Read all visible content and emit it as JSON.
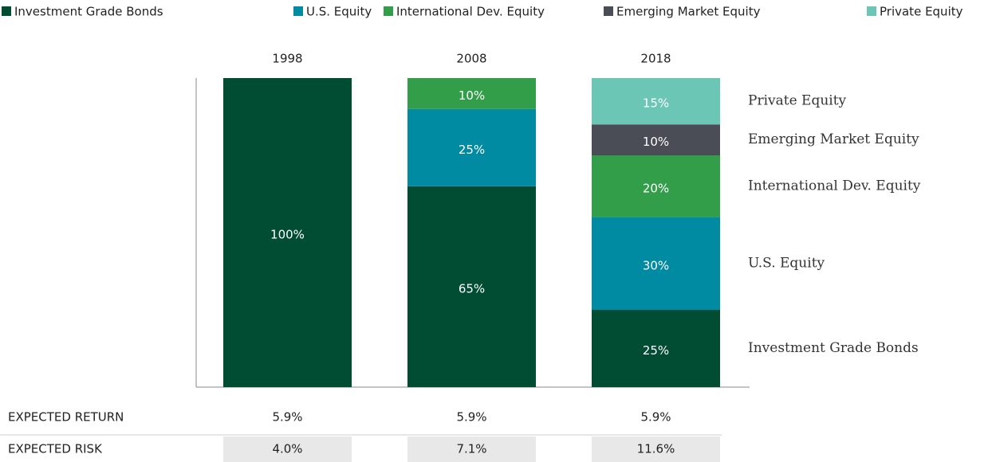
{
  "chart_data": {
    "type": "stacked_bar",
    "categories": [
      "1998",
      "2008",
      "2018"
    ],
    "ylim": [
      0,
      100
    ],
    "legend": "top",
    "series": [
      {
        "name": "Investment Grade Bonds",
        "color": "#004d33",
        "values": [
          100,
          65,
          25
        ],
        "value_labels": [
          "100%",
          "65%",
          "25%"
        ]
      },
      {
        "name": "U.S. Equity",
        "color": "#008ba3",
        "values": [
          0,
          25,
          30
        ],
        "value_labels": [
          null,
          "25%",
          "30%"
        ]
      },
      {
        "name": "International Dev. Equity",
        "color": "#339e4a",
        "values": [
          0,
          10,
          20
        ],
        "value_labels": [
          null,
          "10%",
          "20%"
        ]
      },
      {
        "name": "Emerging Market Equity",
        "color": "#4a4d55",
        "values": [
          0,
          0,
          10
        ],
        "value_labels": [
          null,
          null,
          "10%"
        ]
      },
      {
        "name": "Private Equity",
        "color": "#6bc6b5",
        "values": [
          0,
          0,
          15
        ],
        "value_labels": [
          null,
          null,
          "15%"
        ]
      }
    ],
    "table": {
      "rows": [
        {
          "label": "EXPECTED RETURN",
          "values": [
            "5.9%",
            "5.9%",
            "5.9%"
          ]
        },
        {
          "label": "EXPECTED RISK",
          "values": [
            "4.0%",
            "7.1%",
            "11.6%"
          ]
        }
      ]
    }
  }
}
